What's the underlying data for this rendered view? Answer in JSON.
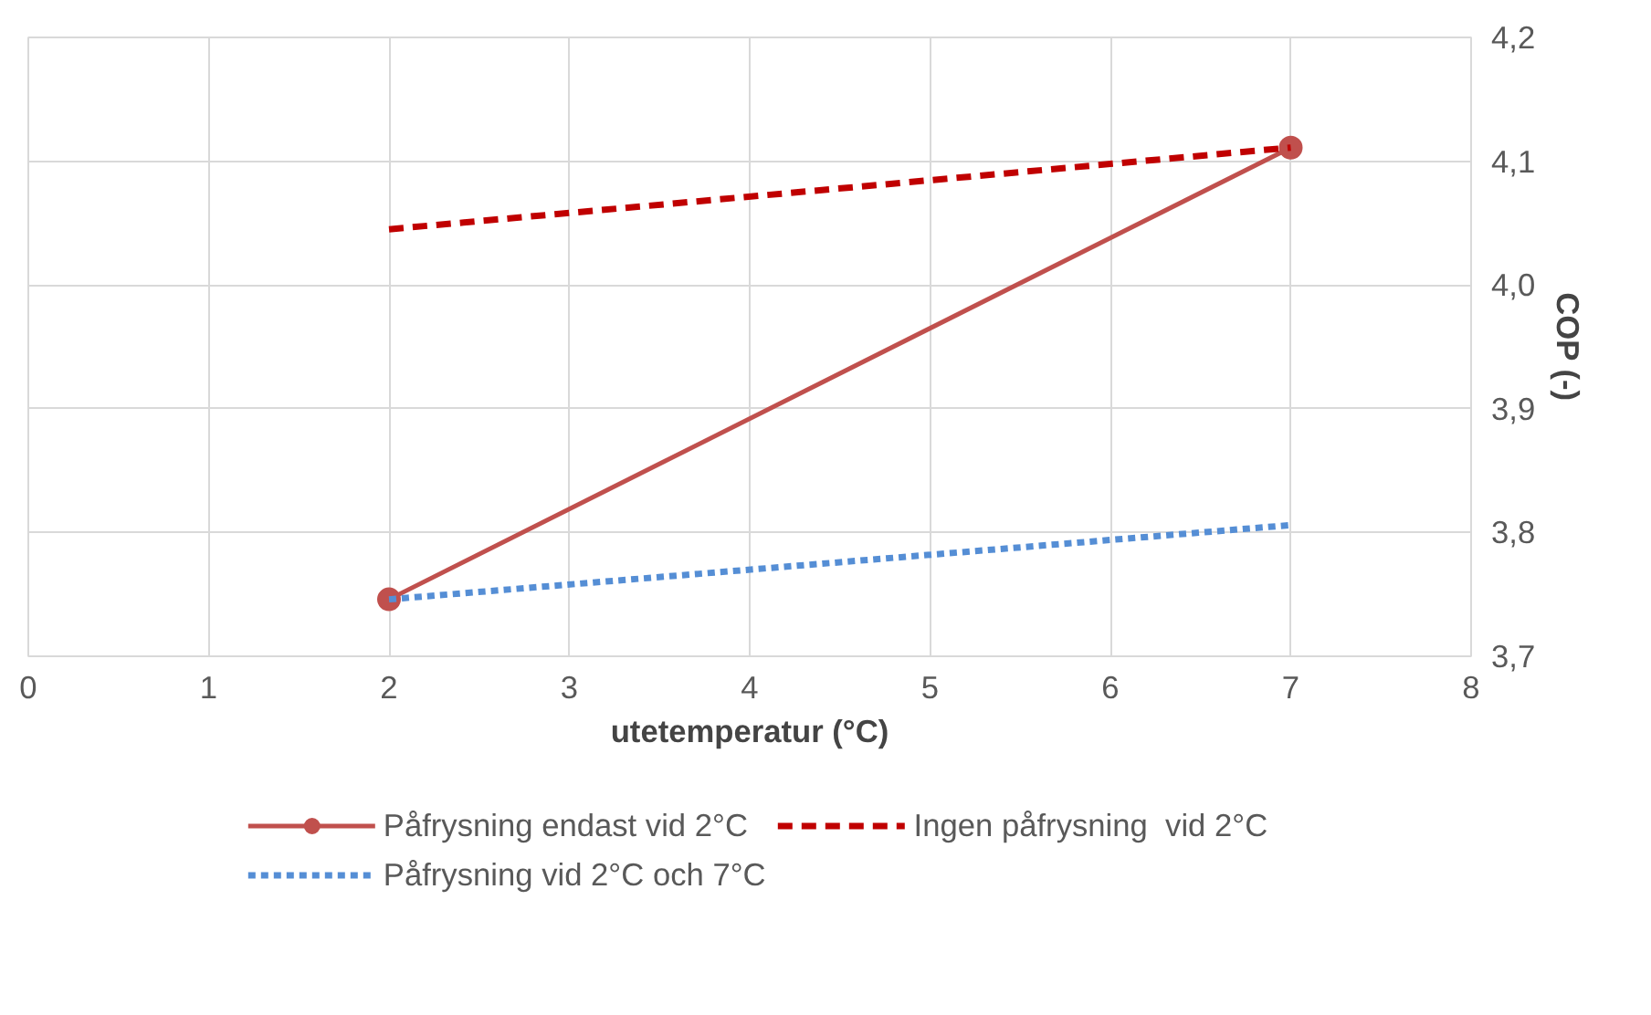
{
  "chart_data": {
    "type": "line",
    "xlabel": "utetemperatur (°C)",
    "ylabel": "COP (-)",
    "xlim": [
      0,
      8
    ],
    "xticks": [
      0,
      1,
      2,
      3,
      4,
      5,
      6,
      7,
      8
    ],
    "ylim": [
      3.7,
      4.2
    ],
    "yticks": [
      {
        "value": 3.7,
        "label": "3,7"
      },
      {
        "value": 3.8,
        "label": "3,8"
      },
      {
        "value": 3.9,
        "label": "3,9"
      },
      {
        "value": 4.0,
        "label": "4,0"
      },
      {
        "value": 4.1,
        "label": "4,1"
      },
      {
        "value": 4.2,
        "label": "4,2"
      }
    ],
    "grid": true,
    "legend": "bottom",
    "x": [
      2,
      7
    ],
    "series": [
      {
        "name": "Påfrysning endast vid 2°C",
        "color": "#c0504d",
        "values": [
          3.746,
          4.111
        ],
        "marker": "circle",
        "line_style": "solid"
      },
      {
        "name": "Ingen påfrysning  vid 2°C",
        "color": "#c00000",
        "values": [
          4.045,
          4.111
        ],
        "marker": "none",
        "line_style": "dashed"
      },
      {
        "name": "Påfrysning vid 2°C och 7°C",
        "color": "#558ed5",
        "values": [
          3.746,
          3.806
        ],
        "marker": "none",
        "line_style": "dotted"
      }
    ]
  }
}
